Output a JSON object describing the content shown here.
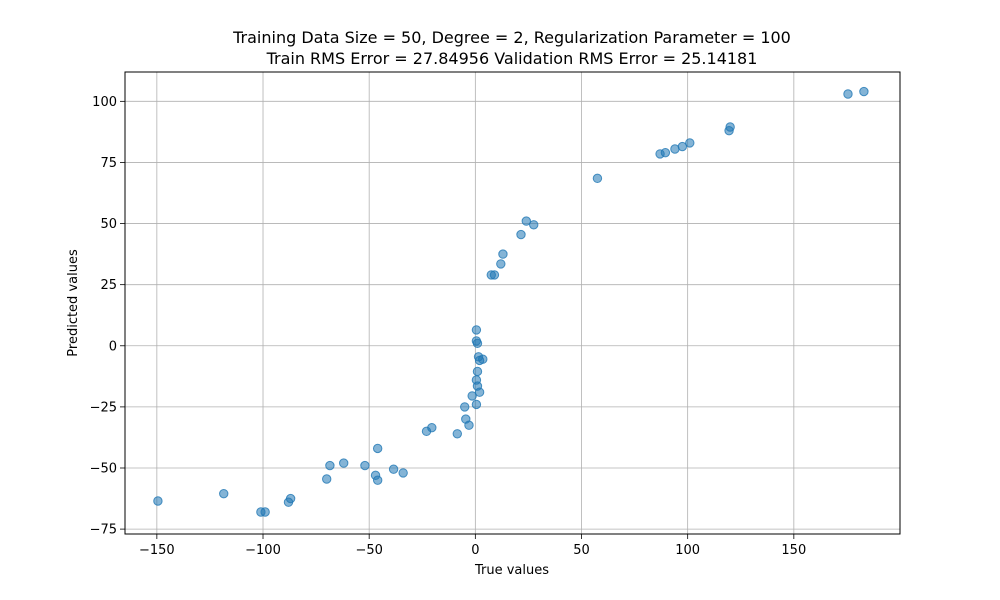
{
  "chart_data": {
    "type": "scatter",
    "title": "Training Data Size = 50, Degree = 2, Regularization Parameter = 100",
    "subtitle": "Train RMS Error = 27.84956 Validation RMS Error = 25.14181",
    "xlabel": "True values",
    "ylabel": "Predicted values",
    "xlim": [
      -165,
      200
    ],
    "ylim": [
      -77,
      112
    ],
    "xticks": [
      -150,
      -100,
      -50,
      0,
      50,
      100,
      150
    ],
    "yticks": [
      -75,
      -50,
      -25,
      0,
      25,
      50,
      75,
      100
    ],
    "xtick_labels": [
      "−150",
      "−100",
      "−50",
      "0",
      "50",
      "100",
      "150"
    ],
    "ytick_labels": [
      "−75",
      "−50",
      "−25",
      "0",
      "25",
      "50",
      "75",
      "100"
    ],
    "grid": true,
    "point_color": "#1f77b4",
    "points": [
      [
        -149.5,
        -63.5
      ],
      [
        -118.5,
        -60.5
      ],
      [
        -101,
        -68
      ],
      [
        -99,
        -68
      ],
      [
        -88,
        -64
      ],
      [
        -87,
        -62.5
      ],
      [
        -70,
        -54.5
      ],
      [
        -68.5,
        -49
      ],
      [
        -62,
        -48
      ],
      [
        -52,
        -49
      ],
      [
        -47,
        -53
      ],
      [
        -46,
        -42
      ],
      [
        -46,
        -55
      ],
      [
        -38.5,
        -50.5
      ],
      [
        -34,
        -52
      ],
      [
        -23,
        -35
      ],
      [
        -20.5,
        -33.5
      ],
      [
        -8.5,
        -36
      ],
      [
        -5,
        -25
      ],
      [
        -4.5,
        -30
      ],
      [
        -3,
        -32.5
      ],
      [
        -1.5,
        -20.5
      ],
      [
        0.5,
        -24
      ],
      [
        0.5,
        6.5
      ],
      [
        0.5,
        2
      ],
      [
        1,
        1
      ],
      [
        0.5,
        -14
      ],
      [
        1,
        -10.5
      ],
      [
        1,
        -16.5
      ],
      [
        1.5,
        -4.5
      ],
      [
        2,
        -19
      ],
      [
        2,
        -6
      ],
      [
        3.5,
        -5.5
      ],
      [
        7.5,
        29
      ],
      [
        9,
        29
      ],
      [
        12,
        33.5
      ],
      [
        13,
        37.5
      ],
      [
        21.5,
        45.5
      ],
      [
        24,
        51
      ],
      [
        27.5,
        49.5
      ],
      [
        57.5,
        68.5
      ],
      [
        87,
        78.5
      ],
      [
        89.5,
        79
      ],
      [
        94,
        80.5
      ],
      [
        97.5,
        81.5
      ],
      [
        101,
        83
      ],
      [
        119.5,
        88
      ],
      [
        120,
        89.5
      ],
      [
        175.5,
        103
      ],
      [
        183,
        104
      ]
    ]
  }
}
